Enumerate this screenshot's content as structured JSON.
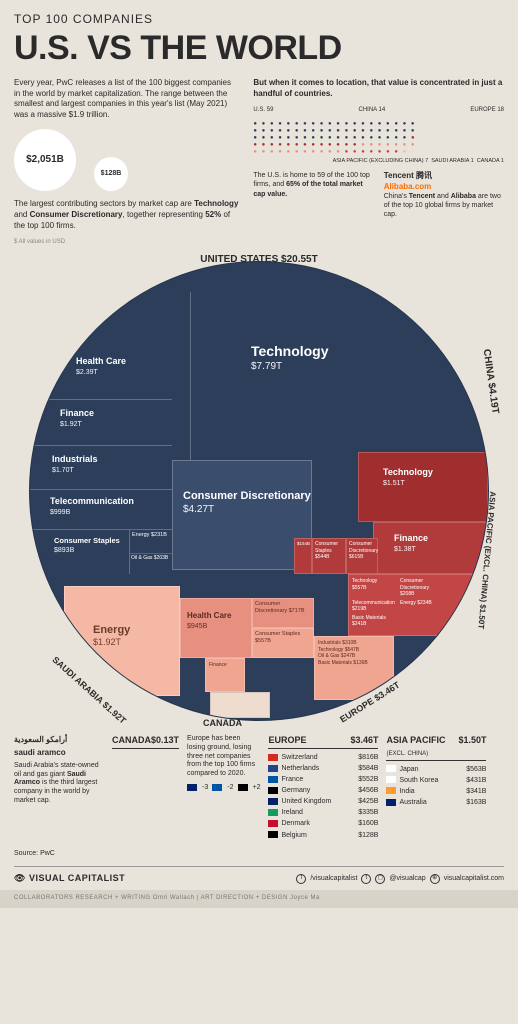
{
  "header": {
    "overline": "TOP 100 COMPANIES",
    "title": "U.S. VS THE WORLD"
  },
  "intro": {
    "left_para": "Every year, PwC releases a list of the 100 biggest companies in the world by market capitalization. The range between the smallest and largest companies in this year's list (May 2021) was a massive $1.9 trillion.",
    "bubble_big": "$2,051B",
    "bubble_small": "$128B",
    "sectors_para_a": "The largest contributing sectors by market cap are ",
    "sectors_bold1": "Technology",
    "sectors_mid": " and ",
    "sectors_bold2": "Consumer Discretionary",
    "sectors_para_b": ", together representing ",
    "sectors_bold3": "52%",
    "sectors_para_c": " of the top 100 firms.",
    "usd_note": "$ All values in USD",
    "right_lead": "But when it comes to location, that value is concentrated in just a handful of countries.",
    "dot_us": "U.S. 59",
    "dot_china": "CHINA 14",
    "dot_eu": "EUROPE 18",
    "dot_asia": "ASIA PACIFIC (EXCLUDING CHINA) 7",
    "dot_sa": "SAUDI ARABIA 1",
    "dot_ca": "CANADA 1",
    "mid_us_a": "The U.S. is home to 59 of the 100 top firms, and ",
    "mid_us_b": "65% of the total market cap value.",
    "mid_cn_brand1": "Tencent 腾讯",
    "mid_cn_brand2": "Alibaba.com",
    "mid_cn_a": "China's ",
    "mid_cn_b": "Tencent",
    "mid_cn_c": " and ",
    "mid_cn_d": "Alibaba",
    "mid_cn_e": " are two of the top 10 global firms by market cap."
  },
  "chart": {
    "arc_us": "UNITED STATES $20.55T",
    "arc_china": "CHINA $4.19T",
    "arc_asia": "ASIA PACIFIC (EXCL. CHINA) $1.50T",
    "arc_eu": "EUROPE $3.46T",
    "arc_ca": "CANADA",
    "arc_sa": "SAUDI ARABIA $1.92T",
    "us": {
      "tech": {
        "label": "Technology",
        "val": "$7.79T"
      },
      "cd": {
        "label": "Consumer Discretionary",
        "val": "$4.27T"
      },
      "hc": {
        "label": "Health Care",
        "val": "$2.39T"
      },
      "fin": {
        "label": "Finance",
        "val": "$1.92T"
      },
      "ind": {
        "label": "Industrials",
        "val": "$1.70T"
      },
      "tel": {
        "label": "Telecommunication",
        "val": "$999B"
      },
      "cs": {
        "label": "Consumer Staples",
        "val": "$893B"
      },
      "en": {
        "label": "Energy",
        "val": "$231B"
      },
      "og": {
        "label": "Oil & Gas",
        "val": "$203B"
      },
      "ut": {
        "label": "Utilities",
        "val": "$166B"
      }
    },
    "china": {
      "tech": {
        "label": "Technology",
        "val": "$1.51T"
      },
      "fin": {
        "label": "Finance",
        "val": "$1.38T"
      },
      "cs": {
        "label": "Consumer Staples",
        "val": "$544B"
      },
      "cd": {
        "label": "Consumer Discretionary",
        "val": "$615B"
      },
      "tel": {
        "label": "Telecom",
        "val": "$154B"
      }
    },
    "asia": {
      "tech": {
        "label": "Technology",
        "val": "$557B"
      },
      "cd": {
        "label": "Consumer Discretionary",
        "val": "$208B"
      },
      "tel": {
        "label": "Telecommunication",
        "val": "$219B"
      },
      "en": {
        "label": "Energy",
        "val": "$234B"
      },
      "bm": {
        "label": "Basic Materials",
        "val": "$241B"
      }
    },
    "eu": {
      "hc": {
        "label": "Health Care",
        "val": "$945B"
      },
      "cd": {
        "label": "Consumer Discretionary",
        "val": "$717B"
      },
      "cs": {
        "label": "Consumer Staples",
        "val": "$557B"
      },
      "ind": {
        "label": "Industrials",
        "val": "$310B"
      },
      "tech": {
        "label": "Technology",
        "val": "$547B"
      },
      "og": {
        "label": "Oil & Gas",
        "val": "$247B"
      },
      "bm": {
        "label": "Basic Materials",
        "val": "$136B"
      },
      "fin": {
        "label": "Finance",
        "val": ""
      }
    },
    "sa": {
      "en": {
        "label": "Energy",
        "val": "$1.92T"
      }
    },
    "ca": {
      "val": "$0.13T"
    },
    "colors": {
      "us": "#2c3e5a",
      "china": "#a02e2e",
      "asia": "#c24646",
      "eu": "#e89080",
      "sa": "#f5b8a5",
      "ca": "#eeddcf"
    }
  },
  "bottom": {
    "sa": {
      "brand": "saudi aramco",
      "text_a": "Saudi Arabia's state-owned oil and gas giant ",
      "text_b": "Saudi Aramco",
      "text_c": " is the third largest company in the world by market cap."
    },
    "canada": {
      "h": "CANADA",
      "v": "$0.13T"
    },
    "europe": {
      "h": "EUROPE",
      "v": "$3.46T",
      "rows": [
        {
          "c": "Switzerland",
          "v": "$816B",
          "flag": "#d52b1e"
        },
        {
          "c": "Netherlands",
          "v": "$584B",
          "flag": "#21468b"
        },
        {
          "c": "France",
          "v": "$552B",
          "flag": "#0055a4"
        },
        {
          "c": "Germany",
          "v": "$456B",
          "flag": "#000"
        },
        {
          "c": "United Kingdom",
          "v": "$425B",
          "flag": "#012169"
        },
        {
          "c": "Ireland",
          "v": "$335B",
          "flag": "#169b62"
        },
        {
          "c": "Denmark",
          "v": "$160B",
          "flag": "#c60c30"
        },
        {
          "c": "Belgium",
          "v": "$128B",
          "flag": "#000"
        }
      ],
      "note": "Europe has been losing ground, losing three net companies from the top 100 firms compared to 2020.",
      "net": [
        {
          "f": "#012169",
          "d": "-3"
        },
        {
          "f": "#0055a4",
          "d": "-2"
        },
        {
          "f": "#000",
          "d": "+2"
        }
      ]
    },
    "asia": {
      "h": "ASIA PACIFIC",
      "sub": "(EXCL. CHINA)",
      "v": "$1.50T",
      "rows": [
        {
          "c": "Japan",
          "v": "$563B",
          "flag": "#fff"
        },
        {
          "c": "South Korea",
          "v": "$431B",
          "flag": "#fff"
        },
        {
          "c": "India",
          "v": "$341B",
          "flag": "#ff9933"
        },
        {
          "c": "Australia",
          "v": "$163B",
          "flag": "#012169"
        }
      ]
    },
    "source": "Source: PwC"
  },
  "footer": {
    "logo": "VISUAL CAPITALIST",
    "handles": {
      "a": "/visualcapitalist",
      "b": "@visualcap",
      "c": "visualcapitalist.com"
    },
    "collab": "COLLABORATORS    RESEARCH + WRITING Omri Wallach  |  ART DIRECTION + DESIGN Joyce Ma"
  }
}
